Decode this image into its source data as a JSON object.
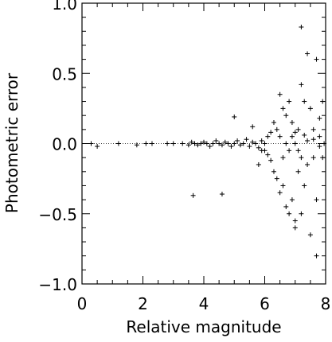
{
  "chart_data": {
    "type": "scatter",
    "title": "",
    "xlabel": "Relative magnitude",
    "ylabel": "Photometric error",
    "xlim": [
      0,
      8
    ],
    "ylim": [
      -1.0,
      1.0
    ],
    "x_ticks": [
      0,
      2,
      4,
      6,
      8
    ],
    "x_tick_labels": [
      "0",
      "2",
      "4",
      "6",
      "8"
    ],
    "y_ticks": [
      -1.0,
      -0.5,
      0.0,
      0.5,
      1.0
    ],
    "y_tick_labels": [
      "−1.0",
      "−0.5",
      "0.0",
      "0.5",
      "1.0"
    ],
    "reference_line_y": 0.0,
    "grid": false,
    "marker": "+",
    "color": "#000000",
    "series": [
      {
        "points": [
          [
            0.3,
            0.0
          ],
          [
            0.5,
            -0.02
          ],
          [
            1.2,
            0.0
          ],
          [
            1.8,
            -0.01
          ],
          [
            2.1,
            0.0
          ],
          [
            2.3,
            0.0
          ],
          [
            2.8,
            0.0
          ],
          [
            3.0,
            0.0
          ],
          [
            3.3,
            0.0
          ],
          [
            3.5,
            -0.01
          ],
          [
            3.6,
            0.01
          ],
          [
            3.7,
            0.0
          ],
          [
            3.8,
            -0.01
          ],
          [
            3.9,
            0.0
          ],
          [
            4.0,
            0.01
          ],
          [
            4.1,
            0.0
          ],
          [
            4.2,
            -0.02
          ],
          [
            4.3,
            0.0
          ],
          [
            4.4,
            0.02
          ],
          [
            4.5,
            0.0
          ],
          [
            4.6,
            -0.01
          ],
          [
            4.7,
            0.01
          ],
          [
            4.8,
            0.0
          ],
          [
            4.9,
            -0.02
          ],
          [
            5.0,
            0.0
          ],
          [
            5.1,
            0.02
          ],
          [
            5.2,
            -0.01
          ],
          [
            5.3,
            0.0
          ],
          [
            5.4,
            0.03
          ],
          [
            5.5,
            -0.02
          ],
          [
            5.6,
            0.01
          ],
          [
            5.7,
            0.0
          ],
          [
            5.8,
            -0.03
          ],
          [
            5.9,
            0.02
          ],
          [
            6.0,
            0.0
          ],
          [
            6.0,
            -0.05
          ],
          [
            3.65,
            -0.37
          ],
          [
            4.6,
            -0.36
          ],
          [
            5.0,
            0.19
          ],
          [
            5.6,
            0.12
          ],
          [
            5.8,
            -0.15
          ],
          [
            5.9,
            -0.05
          ],
          [
            6.1,
            0.05
          ],
          [
            6.1,
            -0.08
          ],
          [
            6.2,
            0.08
          ],
          [
            6.2,
            -0.12
          ],
          [
            6.3,
            -0.2
          ],
          [
            6.3,
            0.15
          ],
          [
            6.4,
            -0.25
          ],
          [
            6.4,
            0.1
          ],
          [
            6.5,
            0.35
          ],
          [
            6.5,
            -0.35
          ],
          [
            6.5,
            0.05
          ],
          [
            6.6,
            0.25
          ],
          [
            6.6,
            -0.3
          ],
          [
            6.6,
            -0.1
          ],
          [
            6.7,
            0.2
          ],
          [
            6.7,
            -0.45
          ],
          [
            6.7,
            0.0
          ],
          [
            6.8,
            -0.5
          ],
          [
            6.8,
            0.3
          ],
          [
            6.8,
            -0.05
          ],
          [
            6.9,
            0.15
          ],
          [
            6.9,
            -0.4
          ],
          [
            6.9,
            0.05
          ],
          [
            7.0,
            -0.6
          ],
          [
            7.0,
            -0.55
          ],
          [
            7.0,
            0.0
          ],
          [
            7.1,
            -0.2
          ],
          [
            7.1,
            0.1
          ],
          [
            7.2,
            0.42
          ],
          [
            7.2,
            -0.5
          ],
          [
            7.2,
            -0.1
          ],
          [
            7.3,
            0.3
          ],
          [
            7.3,
            -0.3
          ],
          [
            7.4,
            0.64
          ],
          [
            7.4,
            -0.15
          ],
          [
            7.5,
            0.25
          ],
          [
            7.5,
            -0.65
          ],
          [
            7.6,
            -0.1
          ],
          [
            7.6,
            0.1
          ],
          [
            7.7,
            -0.8
          ],
          [
            7.7,
            0.6
          ],
          [
            7.7,
            -0.4
          ],
          [
            7.8,
            0.18
          ],
          [
            7.8,
            0.05
          ],
          [
            7.9,
            -0.1
          ],
          [
            7.9,
            0.3
          ],
          [
            7.2,
            0.83
          ],
          [
            7.0,
            0.08
          ],
          [
            7.1,
            -0.05
          ],
          [
            7.3,
            0.06
          ],
          [
            7.4,
            0.02
          ],
          [
            7.6,
            0.03
          ],
          [
            7.8,
            -0.02
          ],
          [
            7.95,
            0.0
          ]
        ]
      }
    ]
  }
}
